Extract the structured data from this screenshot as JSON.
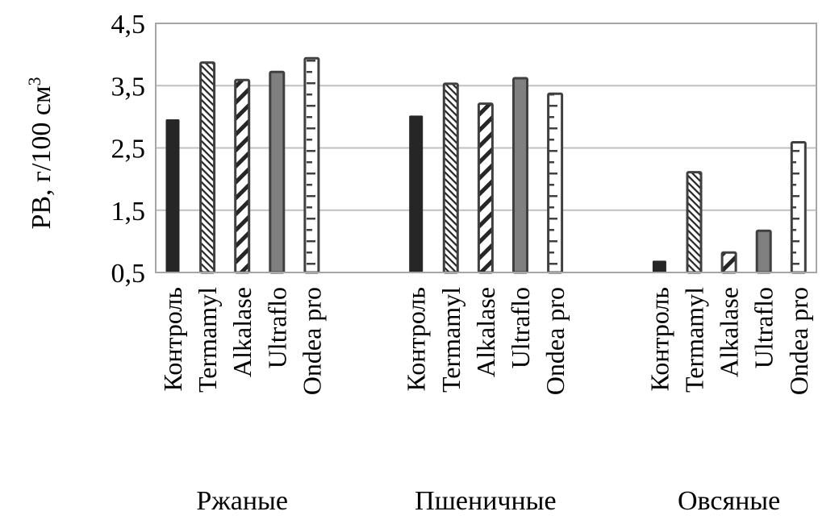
{
  "chart_data": {
    "type": "bar",
    "title": "",
    "xlabel": "",
    "ylabel": "РВ, г/100 см",
    "ylabel_superscript": "3",
    "ylim": [
      0.5,
      4.5
    ],
    "yticks": [
      "0,5",
      "1,5",
      "2,5",
      "3,5",
      "4,5"
    ],
    "ytick_values": [
      0.5,
      1.5,
      2.5,
      3.5,
      4.5
    ],
    "grid": true,
    "groups": [
      {
        "name": "Ржаные",
        "bars": [
          {
            "label": "Контроль",
            "value": 2.96
          },
          {
            "label": "Termamyl",
            "value": 3.87
          },
          {
            "label": "Alkalase",
            "value": 3.59
          },
          {
            "label": "Ultraflo",
            "value": 3.72
          },
          {
            "label": "Ondea pro",
            "value": 3.94
          }
        ]
      },
      {
        "name": "Пшеничные",
        "bars": [
          {
            "label": "Контроль",
            "value": 3.02
          },
          {
            "label": "Termamyl",
            "value": 3.53
          },
          {
            "label": "Alkalase",
            "value": 3.21
          },
          {
            "label": "Ultraflo",
            "value": 3.62
          },
          {
            "label": "Ondea pro",
            "value": 3.37
          }
        ]
      },
      {
        "name": "Овсяные",
        "bars": [
          {
            "label": "Контроль",
            "value": 0.69
          },
          {
            "label": "Termamyl",
            "value": 2.11
          },
          {
            "label": "Alkalase",
            "value": 0.82
          },
          {
            "label": "Ultraflo",
            "value": 1.17
          },
          {
            "label": "Ondea pro",
            "value": 2.59
          }
        ]
      }
    ],
    "colors": {
      "solid": "#262626",
      "gray": "#808080",
      "outline": "#404040",
      "grid": "#c0c0c0",
      "axis": "#a6a6a6"
    }
  }
}
